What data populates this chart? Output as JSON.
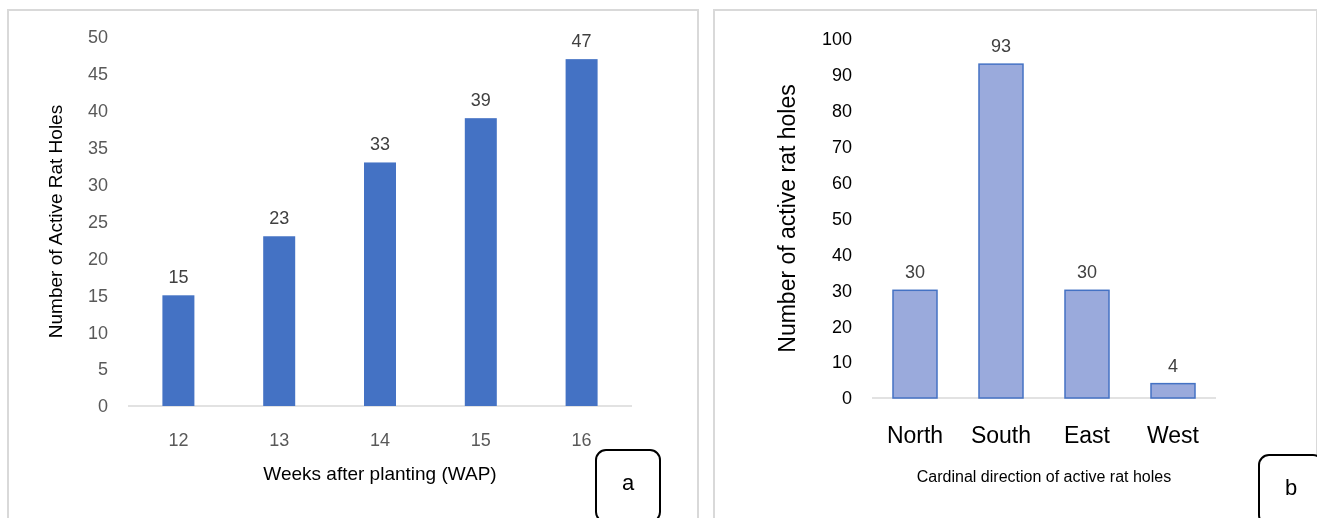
{
  "chart_data": [
    {
      "type": "bar",
      "xlabel": "Weeks after planting (WAP)",
      "ylabel": "Number of Active Rat Holes",
      "categories": [
        "12",
        "13",
        "14",
        "15",
        "16"
      ],
      "values": [
        15,
        23,
        33,
        39,
        47
      ],
      "color": "#4472c4",
      "ylim": [
        0,
        50
      ],
      "yticks": [
        0,
        5,
        10,
        15,
        20,
        25,
        30,
        35,
        40,
        45,
        50
      ],
      "data_labels": true,
      "grid": false,
      "annotations": [
        "a"
      ]
    },
    {
      "type": "bar",
      "xlabel": "Cardinal direction of active rat holes",
      "ylabel": "Number of active rat holes",
      "categories": [
        "North",
        "South",
        "East",
        "West"
      ],
      "values": [
        30,
        93,
        30,
        4
      ],
      "color": "#9aaadc",
      "ylim": [
        0,
        100
      ],
      "yticks": [
        0,
        10,
        20,
        30,
        40,
        50,
        60,
        70,
        80,
        90,
        100
      ],
      "data_labels": true,
      "grid": false,
      "annotations": [
        "b"
      ]
    }
  ]
}
